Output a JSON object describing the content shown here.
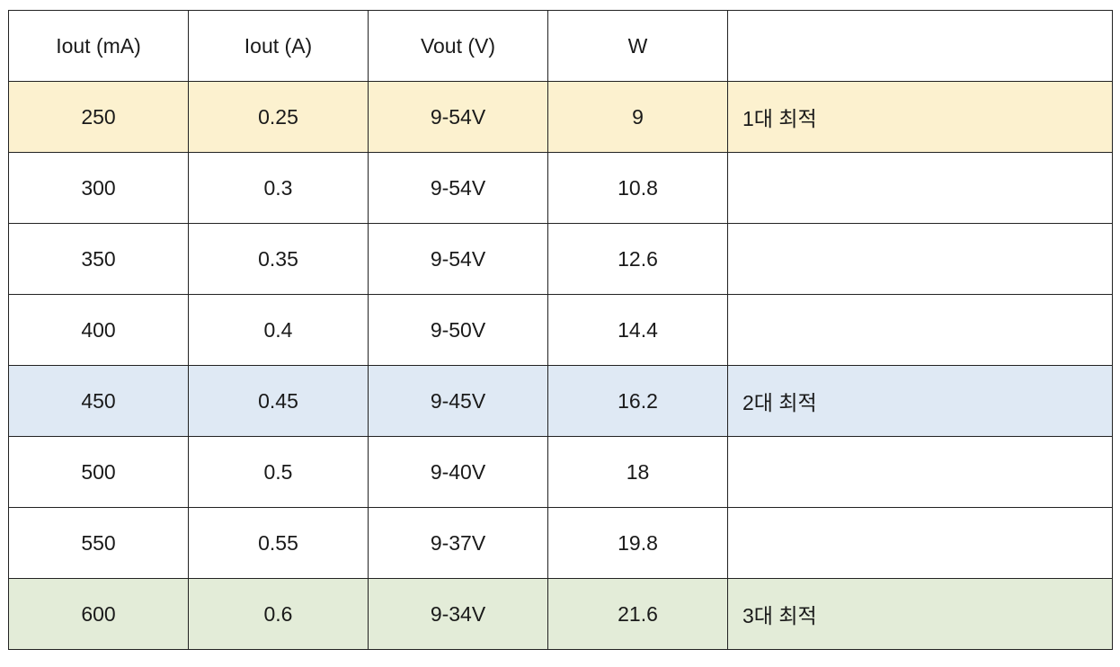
{
  "table": {
    "headers": [
      "Iout (mA)",
      "Iout (A)",
      "Vout (V)",
      "W",
      ""
    ],
    "rows": [
      {
        "cells": [
          "250",
          "0.25",
          "9-54V",
          "9",
          "1대 최적"
        ],
        "bg": "#fcf1cf"
      },
      {
        "cells": [
          "300",
          "0.3",
          "9-54V",
          "10.8",
          ""
        ],
        "bg": "#ffffff"
      },
      {
        "cells": [
          "350",
          "0.35",
          "9-54V",
          "12.6",
          ""
        ],
        "bg": "#ffffff"
      },
      {
        "cells": [
          "400",
          "0.4",
          "9-50V",
          "14.4",
          ""
        ],
        "bg": "#ffffff"
      },
      {
        "cells": [
          "450",
          "0.45",
          "9-45V",
          "16.2",
          "2대 최적"
        ],
        "bg": "#dfe9f4"
      },
      {
        "cells": [
          "500",
          "0.5",
          "9-40V",
          "18",
          ""
        ],
        "bg": "#ffffff"
      },
      {
        "cells": [
          "550",
          "0.55",
          "9-37V",
          "19.8",
          ""
        ],
        "bg": "#ffffff"
      },
      {
        "cells": [
          "600",
          "0.6",
          "9-34V",
          "21.6",
          "3대 최적"
        ],
        "bg": "#e3ecd8"
      }
    ]
  }
}
